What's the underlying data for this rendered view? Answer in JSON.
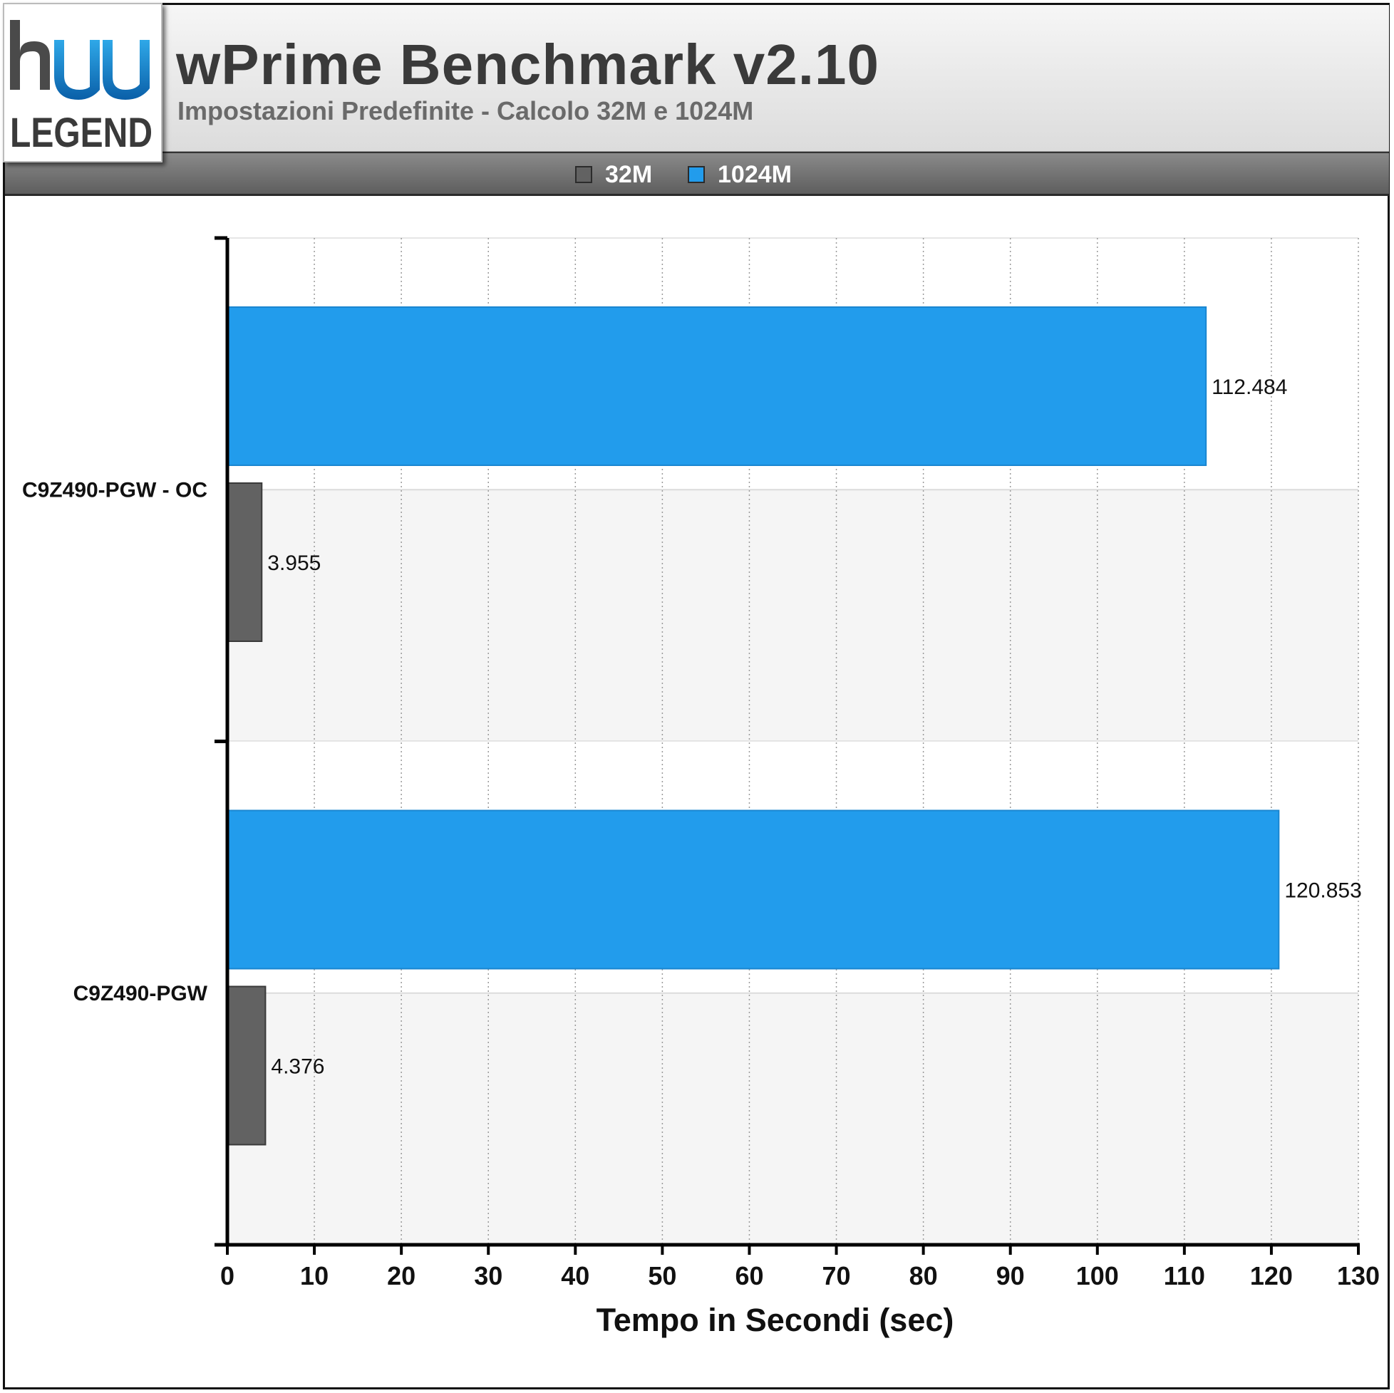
{
  "header": {
    "title": "wPrime Benchmark v2.10",
    "subtitle": "Impostazioni Predefinite - Calcolo 32M e 1024M"
  },
  "logo": {
    "text": "LEGEND",
    "mark": "HW"
  },
  "colors": {
    "series_32m": "#626262",
    "series_1024m": "#229cec",
    "plot_band": "#f5f5f5",
    "header_bar": "#6e6e6e"
  },
  "chart_data": {
    "type": "bar",
    "orientation": "horizontal",
    "categories": [
      "C9Z490-PGW - OC",
      "C9Z490-PGW"
    ],
    "series": [
      {
        "name": "32M",
        "values": [
          3.955,
          4.376
        ],
        "labels": [
          "3.955",
          "4.376"
        ]
      },
      {
        "name": "1024M",
        "values": [
          112.484,
          120.853
        ],
        "labels": [
          "112.484",
          "120.853"
        ]
      }
    ],
    "xlabel": "Tempo in Secondi (sec)",
    "xlim": [
      0,
      130
    ],
    "xticks": [
      0,
      10,
      20,
      30,
      40,
      50,
      60,
      70,
      80,
      90,
      100,
      110,
      120,
      130
    ],
    "grid": "vertical dotted",
    "legend_position": "top"
  }
}
